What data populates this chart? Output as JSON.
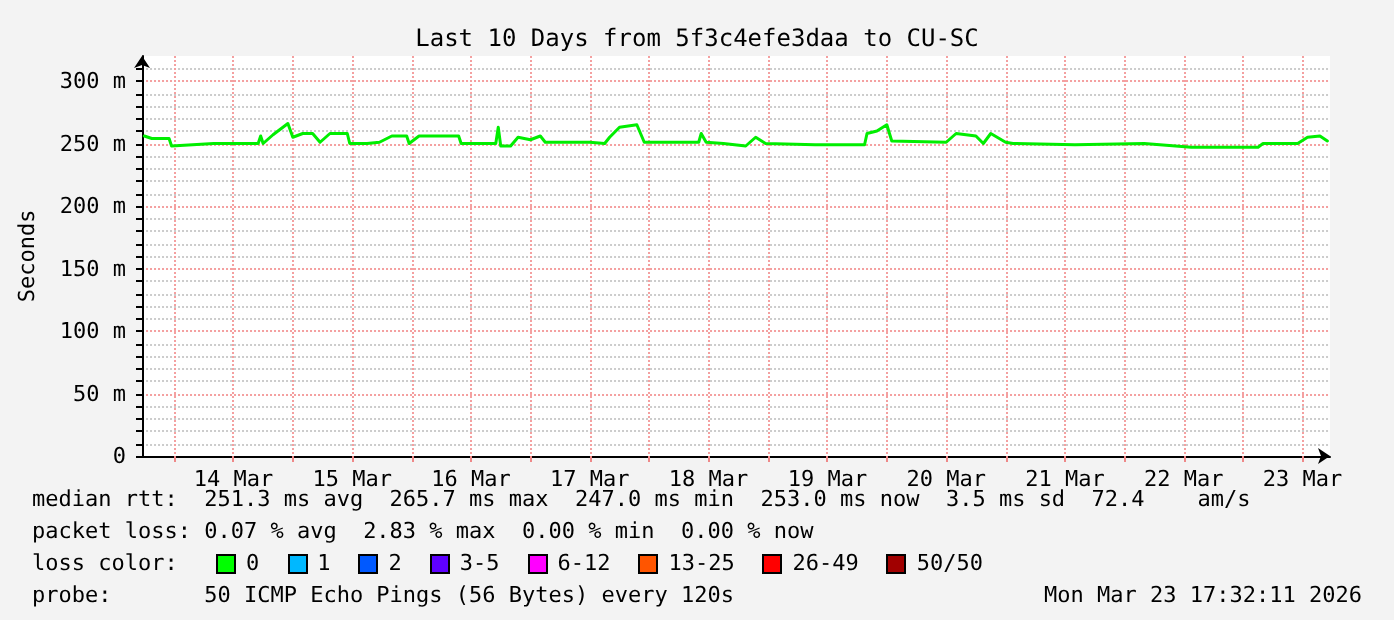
{
  "chart_data": {
    "type": "line",
    "title": "Last 10 Days from 5f3c4efe3daa to CU-SC",
    "ylabel": "Seconds",
    "x": [
      "2026-03-13T18:00",
      "2026-03-13T19:30",
      "2026-03-13T23:00",
      "2026-03-13T23:30",
      "2026-03-14T08:00",
      "2026-03-14T13:30",
      "2026-03-14T17:00",
      "2026-03-14T17:30",
      "2026-03-14T18:00",
      "2026-03-14T20:00",
      "2026-03-14T23:00",
      "2026-03-15T00:00",
      "2026-03-15T02:00",
      "2026-03-15T04:00",
      "2026-03-15T05:30",
      "2026-03-15T07:30",
      "2026-03-15T11:00",
      "2026-03-15T11:30",
      "2026-03-15T15:00",
      "2026-03-15T17:30",
      "2026-03-15T20:00",
      "2026-03-15T23:00",
      "2026-03-15T23:30",
      "2026-03-16T01:30",
      "2026-03-16T09:30",
      "2026-03-16T10:00",
      "2026-03-16T17:00",
      "2026-03-16T17:30",
      "2026-03-16T18:00",
      "2026-03-16T20:00",
      "2026-03-16T21:30",
      "2026-03-17T00:00",
      "2026-03-17T02:00",
      "2026-03-17T03:00",
      "2026-03-17T12:00",
      "2026-03-17T15:00",
      "2026-03-17T16:00",
      "2026-03-17T18:00",
      "2026-03-17T21:30",
      "2026-03-17T23:00",
      "2026-03-18T10:00",
      "2026-03-18T10:30",
      "2026-03-18T11:30",
      "2026-03-18T15:00",
      "2026-03-18T19:30",
      "2026-03-18T21:30",
      "2026-03-18T23:30",
      "2026-03-19T09:30",
      "2026-03-19T19:30",
      "2026-03-19T20:00",
      "2026-03-19T22:00",
      "2026-03-20T00:00",
      "2026-03-20T01:00",
      "2026-03-20T12:00",
      "2026-03-20T14:00",
      "2026-03-20T18:00",
      "2026-03-20T19:30",
      "2026-03-20T21:00",
      "2026-03-21T00:00",
      "2026-03-21T01:30",
      "2026-03-21T14:00",
      "2026-03-22T04:00",
      "2026-03-22T13:30",
      "2026-03-23T03:00",
      "2026-03-23T04:00",
      "2026-03-23T11:00",
      "2026-03-23T13:00",
      "2026-03-23T15:30",
      "2026-03-23T17:00"
    ],
    "series": [
      {
        "color": "#00ee00",
        "values": [
          256,
          254,
          254,
          248,
          250,
          250,
          250,
          256,
          250,
          257,
          266,
          255,
          258,
          258,
          251,
          258,
          258,
          250,
          250,
          251,
          256,
          256,
          250,
          256,
          256,
          250,
          250,
          263,
          248,
          248,
          255,
          253,
          256,
          251,
          251,
          250,
          255,
          263,
          265,
          251,
          251,
          258,
          251,
          250,
          248,
          255,
          250,
          249,
          249,
          258,
          260,
          265,
          252,
          251,
          258,
          256,
          250,
          258,
          251,
          250,
          249,
          250,
          247,
          247,
          250,
          250,
          255,
          256,
          252
        ]
      }
    ],
    "xlim": [
      "2026-03-13T17:32",
      "2026-03-23T17:32"
    ],
    "xticks": [
      {
        "value": "2026-03-14T00:00",
        "label": null
      },
      {
        "value": "2026-03-14T12:00",
        "label": "14 Mar"
      },
      {
        "value": "2026-03-15T00:00",
        "label": null
      },
      {
        "value": "2026-03-15T12:00",
        "label": "15 Mar"
      },
      {
        "value": "2026-03-16T00:00",
        "label": null
      },
      {
        "value": "2026-03-16T12:00",
        "label": "16 Mar"
      },
      {
        "value": "2026-03-17T00:00",
        "label": null
      },
      {
        "value": "2026-03-17T12:00",
        "label": "17 Mar"
      },
      {
        "value": "2026-03-18T00:00",
        "label": null
      },
      {
        "value": "2026-03-18T12:00",
        "label": "18 Mar"
      },
      {
        "value": "2026-03-19T00:00",
        "label": null
      },
      {
        "value": "2026-03-19T12:00",
        "label": "19 Mar"
      },
      {
        "value": "2026-03-20T00:00",
        "label": null
      },
      {
        "value": "2026-03-20T12:00",
        "label": "20 Mar"
      },
      {
        "value": "2026-03-21T00:00",
        "label": null
      },
      {
        "value": "2026-03-21T12:00",
        "label": "21 Mar"
      },
      {
        "value": "2026-03-22T00:00",
        "label": null
      },
      {
        "value": "2026-03-22T12:00",
        "label": "22 Mar"
      },
      {
        "value": "2026-03-23T00:00",
        "label": null
      },
      {
        "value": "2026-03-23T12:00",
        "label": "23 Mar"
      }
    ],
    "ylim": [
      0,
      320
    ],
    "yticks": [
      0,
      {
        "value": 50,
        "label": "50 m"
      },
      {
        "value": 100,
        "label": "100 m"
      },
      {
        "value": 150,
        "label": "150 m"
      },
      {
        "value": 200,
        "label": "200 m"
      },
      {
        "value": 250,
        "label": "250 m"
      },
      {
        "value": 300,
        "label": "300 m"
      }
    ],
    "grid": true,
    "marker": "none",
    "line_style": "solid",
    "annotations": [
      "median rtt:  251.3 ms avg  265.7 ms max  247.0 ms min  253.0 ms now  3.5 ms sd  72.4    am/s",
      "packet loss: 0.07 % avg  2.83 % max  0.00 % min  0.00 % now",
      "loss color:",
      "0",
      "1",
      "2",
      "3-5",
      "6-12",
      "13-25",
      "26-49",
      "50/50",
      "probe:       50 ICMP Echo Pings (56 Bytes) every 120s",
      "Mon Mar 23 17:32:11 2026"
    ]
  }
}
